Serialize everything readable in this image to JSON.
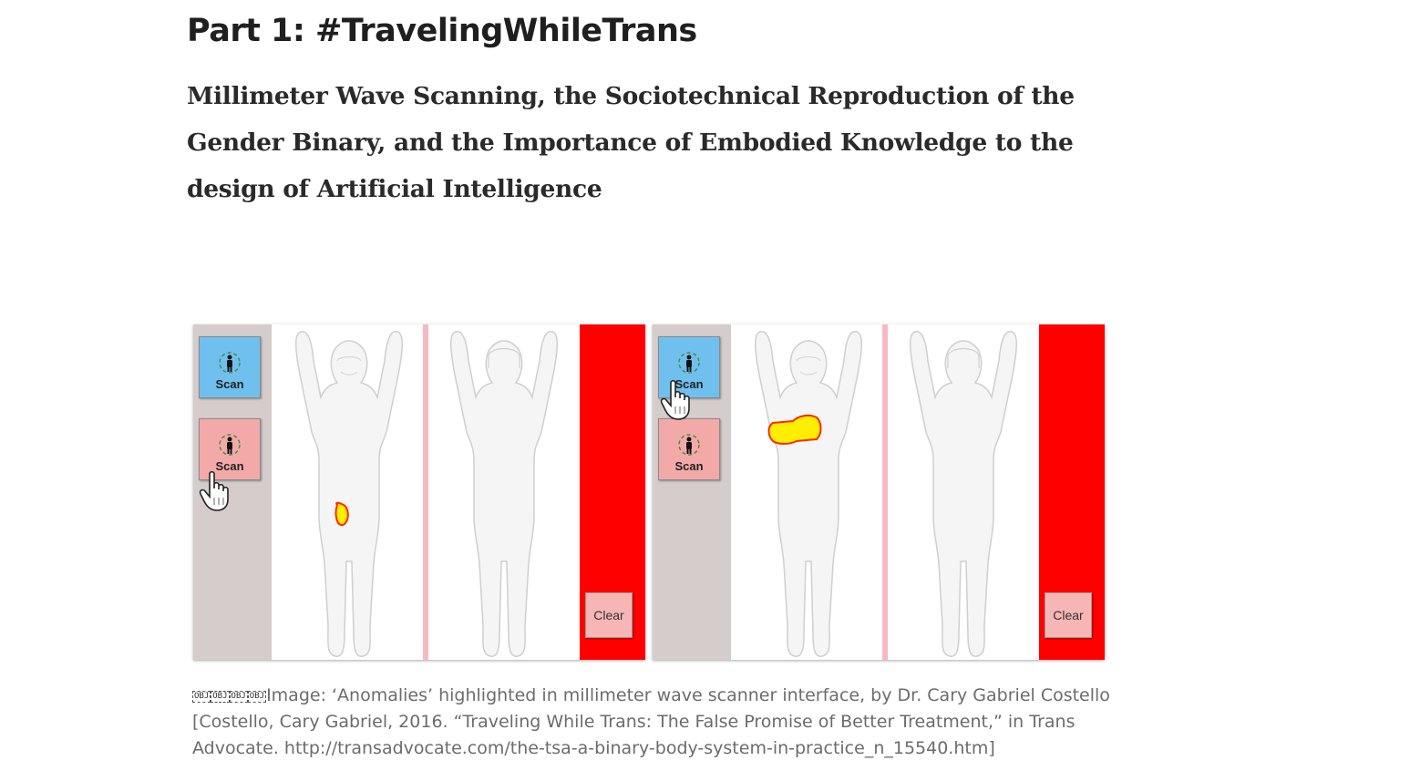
{
  "article": {
    "part_title": "Part 1: #TravelingWhileTrans",
    "subtitle": "Millimeter Wave Scanning, the Sociotechnical Reproduction of the Gender Binary, and the Importance of Embodied Knowledge to the design of Artificial Intelligence"
  },
  "figure": {
    "panels": [
      {
        "scan_buttons": [
          {
            "label": "Scan",
            "color": "#6fc0ef",
            "icon": "body-scan-icon"
          },
          {
            "label": "Scan",
            "color": "#f4a9a9",
            "icon": "body-scan-icon"
          }
        ],
        "clear_label": "Clear",
        "anomaly_region": "groin",
        "cursor_on": "pink-scan-button"
      },
      {
        "scan_buttons": [
          {
            "label": "Scan",
            "color": "#6fc0ef",
            "icon": "body-scan-icon"
          },
          {
            "label": "Scan",
            "color": "#f4a9a9",
            "icon": "body-scan-icon"
          }
        ],
        "clear_label": "Clear",
        "anomaly_region": "chest",
        "cursor_on": "blue-scan-button"
      }
    ],
    "colors": {
      "side_panel": "#d4cdcb",
      "alarm_bar": "#ff0000",
      "anomaly_fill": "#ffee00",
      "anomaly_outline": "#ff2a00"
    },
    "caption": {
      "obj_marks": [
        "OBJ",
        "OBJ",
        "OBJ",
        "OBJ"
      ],
      "text": "Image: ‘Anomalies’ highlighted in millimeter wave scanner interface, by Dr. Cary Gabriel Costello [Costello, Cary Gabriel, 2016. “Traveling While Trans: The False Promise of Better Treatment,” in Trans Advocate. http://transadvocate.com/the-tsa-a-binary-body-system-in-practice_n_15540.htm]"
    }
  }
}
